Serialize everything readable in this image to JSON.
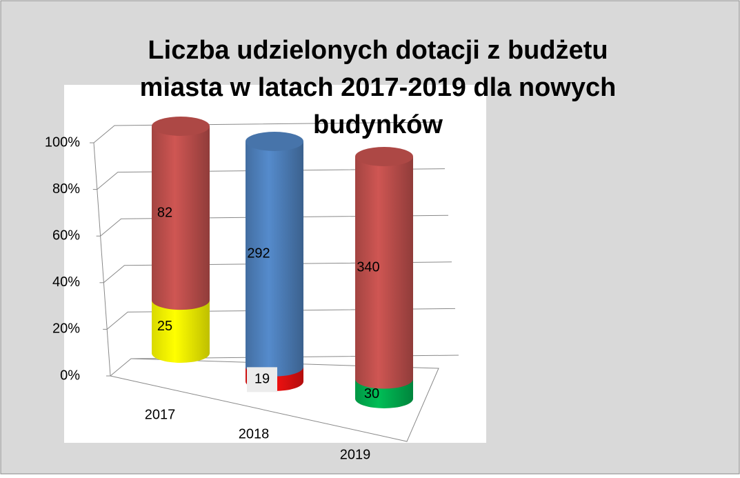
{
  "chart_data": {
    "type": "bar3d_stacked100",
    "title": [
      "Liczba udzielonych dotacji z budżetu",
      "miasta w latach 2017-2019 dla nowych",
      "budynków"
    ],
    "categories": [
      "2017",
      "2018",
      "2019"
    ],
    "series": [
      {
        "color": "#ffff00",
        "values": [
          25,
          null,
          null
        ]
      },
      {
        "color": "#ee1111",
        "values": [
          null,
          19,
          null
        ]
      },
      {
        "color": "#00b050",
        "values": [
          null,
          null,
          30
        ]
      },
      {
        "color": "#c0504d",
        "values": [
          82,
          null,
          340
        ]
      },
      {
        "color": "#4f81bd",
        "values": [
          null,
          292,
          null
        ]
      }
    ],
    "ylim": [
      0,
      100
    ],
    "yticks": [
      {
        "value": 0,
        "label": "0%"
      },
      {
        "value": 20,
        "label": "20%"
      },
      {
        "value": 40,
        "label": "40%"
      },
      {
        "value": 60,
        "label": "60%"
      },
      {
        "value": 80,
        "label": "80%"
      },
      {
        "value": 100,
        "label": "100%"
      }
    ],
    "grid": true
  }
}
